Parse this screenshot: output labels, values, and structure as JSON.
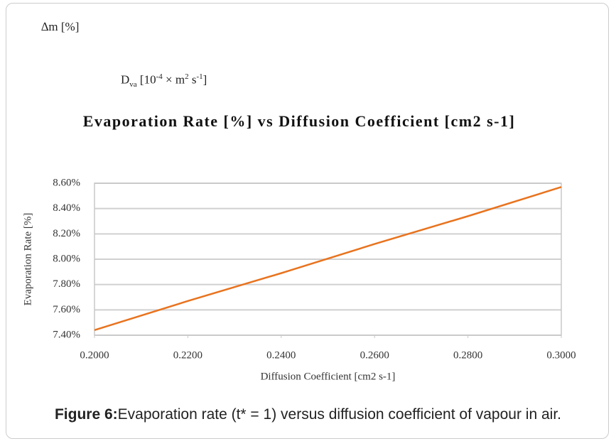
{
  "notes": {
    "delta": "∆m [%]",
    "dva": [
      {
        "text": "D"
      },
      {
        "text": "va",
        "script": "sub"
      },
      {
        "text": " [10"
      },
      {
        "text": "-4",
        "script": "sup"
      },
      {
        "text": " × m"
      },
      {
        "text": "2",
        "script": "sup"
      },
      {
        "text": " s"
      },
      {
        "text": "-1",
        "script": "sup"
      },
      {
        "text": "]"
      }
    ]
  },
  "chart_data": {
    "type": "line",
    "title": "Evaporation Rate [%] vs Diffusion Coefficient [cm2 s-1]",
    "x_label": "Diffusion Coefficient [cm2 s-1]",
    "y_label": "Evaporation Rate [%]",
    "x": [
      0.2,
      0.22,
      0.24,
      0.26,
      0.28,
      0.3
    ],
    "series": [
      {
        "name": "Evaporation Rate",
        "color": "#e8731e",
        "values": [
          7.44,
          7.67,
          7.89,
          8.12,
          8.34,
          8.57
        ]
      }
    ],
    "xlim": [
      0.2,
      0.3
    ],
    "xticks": [
      {
        "value": 0.2,
        "label": "0.2000"
      },
      {
        "value": 0.22,
        "label": "0.2200"
      },
      {
        "value": 0.24,
        "label": "0.2400"
      },
      {
        "value": 0.26,
        "label": "0.2600"
      },
      {
        "value": 0.28,
        "label": "0.2800"
      },
      {
        "value": 0.3,
        "label": "0.3000"
      }
    ],
    "ylim": [
      7.4,
      8.6
    ],
    "yticks": [
      {
        "value": 7.4,
        "label": "7.40%"
      },
      {
        "value": 7.6,
        "label": "7.60%"
      },
      {
        "value": 7.8,
        "label": "7.80%"
      },
      {
        "value": 8.0,
        "label": "8.00%"
      },
      {
        "value": 8.2,
        "label": "8.20%"
      },
      {
        "value": 8.4,
        "label": "8.40%"
      },
      {
        "value": 8.6,
        "label": "8.60%"
      }
    ],
    "grid": true
  },
  "caption": {
    "label": "Figure 6:",
    "text": "Evaporation rate (t* = 1) versus diffusion coefficient of vapour in air."
  }
}
